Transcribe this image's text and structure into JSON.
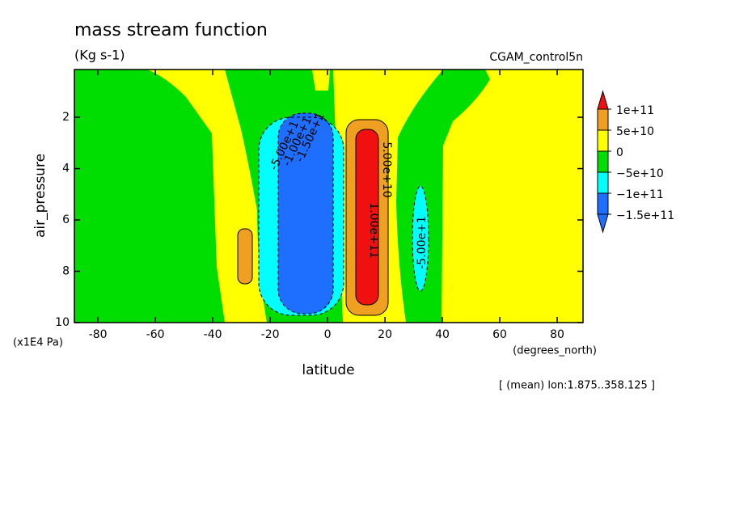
{
  "chart_data": {
    "type": "contour",
    "title": "mass stream function",
    "subtitle": "(Kg s-1)",
    "dataset": "CGAM_control5n",
    "x_label": "latitude",
    "x_unit": "(degrees_north)",
    "y_label": "air_pressure",
    "y_unit": "(x1E4 Pa)",
    "note": "[ (mean) lon:1.875..358.125 ]",
    "xlim": [
      -88.2,
      89
    ],
    "xticks": [
      -80,
      -60,
      -40,
      -20,
      0,
      20,
      40,
      60,
      80
    ],
    "ylim": [
      10,
      0.14
    ],
    "yticks": [
      2,
      4,
      6,
      8,
      10
    ],
    "colorbar": {
      "levels": [
        {
          "value": -150000000000,
          "label": "−1.5e+11"
        },
        {
          "value": -100000000000,
          "label": "−1e+11"
        },
        {
          "value": -50000000000,
          "label": "−5e+10"
        },
        0,
        {
          "value": 50000000000,
          "label": "5e+10"
        },
        {
          "value": 100000000000,
          "label": "1e+11"
        }
      ],
      "colors": [
        "#1e6eff",
        "#1e6eff",
        "#00ffff",
        "#00dd00",
        "#ffff00",
        "#f0a020",
        "#f01010"
      ]
    },
    "contour_labels": [
      "-5.00e+1",
      "-1.00e+1",
      "-1.50e+1",
      "5.00e+10",
      "1.00e+11",
      "-5.00e+1"
    ]
  }
}
